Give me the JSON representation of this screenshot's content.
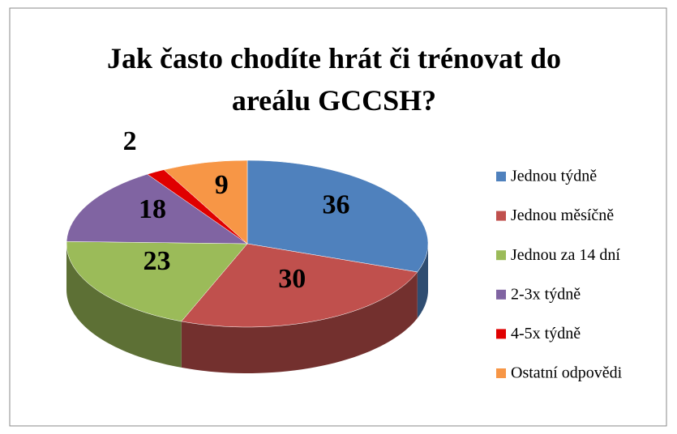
{
  "chart_data": {
    "type": "pie3d",
    "title": "Jak často chodíte hrát či trénovat do areálu GCCSH?",
    "categories": [
      "Jednou týdně",
      "Jednou měsíčně",
      "Jednou za 14 dní",
      "2-3x týdně",
      "4-5x týdně",
      "Ostatní odpovědi"
    ],
    "values": [
      36,
      30,
      23,
      18,
      2,
      9
    ],
    "colors": [
      "#4f81bd",
      "#c0504d",
      "#9bbb59",
      "#8064a2",
      "#e00000",
      "#f79646"
    ],
    "legend": "right"
  }
}
